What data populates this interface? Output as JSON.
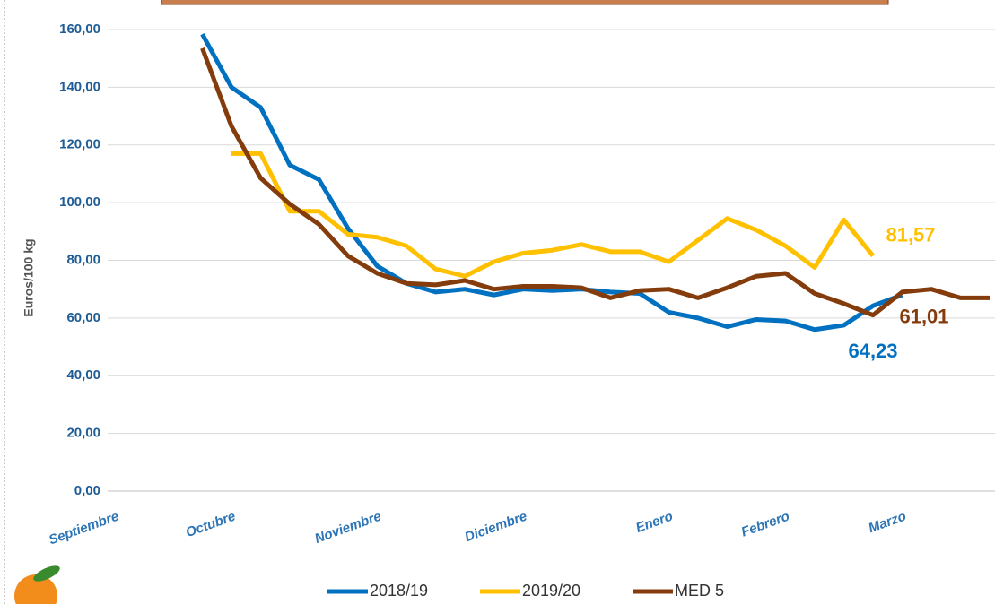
{
  "chart_data": {
    "type": "line",
    "y_label": "Euros/100 kg",
    "categories": [
      "Septiembre",
      null,
      null,
      null,
      "Octubre",
      null,
      null,
      null,
      null,
      "Noviembre",
      null,
      null,
      null,
      null,
      "Diciembre",
      null,
      null,
      null,
      null,
      "Enero",
      null,
      null,
      null,
      "Febrero",
      null,
      null,
      null,
      "Marzo",
      null,
      null,
      null
    ],
    "series": [
      {
        "name": "2018/19",
        "color": "#0070c0",
        "values": [
          null,
          null,
          null,
          158.4,
          140,
          133,
          113,
          108,
          91,
          78,
          72,
          69,
          70,
          68,
          70,
          69.5,
          70,
          69,
          68.5,
          62,
          60,
          57,
          59.5,
          59,
          56,
          57.5,
          64.23,
          68,
          null,
          null,
          null
        ],
        "value_labels": [
          null,
          null,
          null,
          null,
          null,
          null,
          null,
          null,
          null,
          null,
          null,
          null,
          null,
          null,
          null,
          null,
          null,
          null,
          null,
          null,
          null,
          null,
          null,
          null,
          null,
          null,
          "64,23",
          null,
          null,
          null,
          null
        ]
      },
      {
        "name": "2019/20",
        "color": "#ffc000",
        "values": [
          null,
          null,
          null,
          null,
          117,
          117,
          97,
          97,
          89,
          88,
          85,
          77,
          74.5,
          79.5,
          82.5,
          83.5,
          85.5,
          83,
          83,
          79.5,
          87,
          94.5,
          90.5,
          85,
          77.5,
          94,
          81.57,
          null,
          null,
          null,
          null
        ],
        "value_labels": [
          null,
          null,
          null,
          null,
          null,
          null,
          null,
          null,
          null,
          null,
          null,
          null,
          null,
          null,
          null,
          null,
          null,
          null,
          null,
          null,
          null,
          null,
          null,
          null,
          null,
          null,
          "81,57",
          null,
          null,
          null,
          null
        ]
      },
      {
        "name": "MED 5",
        "color": "#843c0c",
        "values": [
          null,
          null,
          null,
          153.5,
          126.5,
          108.5,
          99.5,
          92.5,
          81.5,
          75.5,
          72,
          71.5,
          73,
          70,
          71,
          71,
          70.5,
          67,
          69.5,
          70,
          67,
          70.5,
          74.5,
          75.5,
          68.5,
          65,
          61.01,
          69,
          70,
          67,
          67
        ],
        "value_labels": [
          null,
          null,
          null,
          null,
          null,
          null,
          null,
          null,
          null,
          null,
          null,
          null,
          null,
          null,
          null,
          null,
          null,
          null,
          null,
          null,
          null,
          null,
          null,
          null,
          null,
          null,
          "61,01",
          null,
          null,
          null,
          null
        ]
      }
    ],
    "ylim": [
      0,
      160
    ],
    "yticks": [
      {
        "value": 0,
        "label": "0,00"
      },
      {
        "value": 20,
        "label": "20,00"
      },
      {
        "value": 40,
        "label": "40,00"
      },
      {
        "value": 60,
        "label": "60,00"
      },
      {
        "value": 80,
        "label": "80,00"
      },
      {
        "value": 100,
        "label": "100,00"
      },
      {
        "value": 120,
        "label": "120,00"
      },
      {
        "value": 140,
        "label": "140,00"
      },
      {
        "value": 160,
        "label": "160,00"
      }
    ],
    "grid": true
  }
}
